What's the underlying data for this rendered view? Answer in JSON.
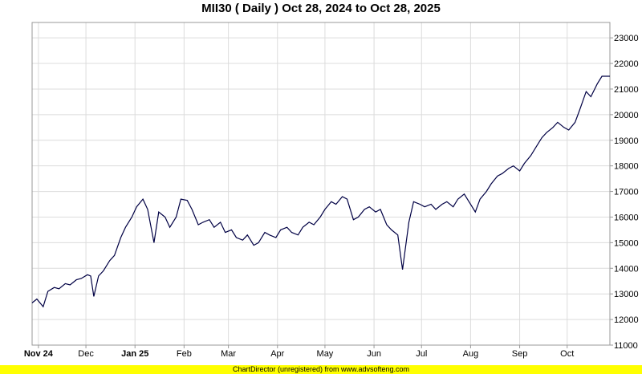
{
  "title": "MII30 ( Daily ) Oct 28, 2024 to Oct 28, 2025",
  "footer": "ChartDirector (unregistered) from www.advsofteng.com",
  "colors": {
    "line": "#000044",
    "grid": "#dcdcdc",
    "axis": "#999999",
    "footer_bg": "#ffff00"
  },
  "chart_data": {
    "type": "line",
    "title": "MII30 ( Daily ) Oct 28, 2024 to Oct 28, 2025",
    "xlabel": "",
    "ylabel": "",
    "ylim": [
      11000,
      23600
    ],
    "xlim": [
      "2024-10-28",
      "2025-10-28"
    ],
    "y_axis_position": "right",
    "grid": true,
    "x_ticks": [
      {
        "date": "2024-11-01",
        "label": "Nov 24",
        "bold": true
      },
      {
        "date": "2024-12-01",
        "label": "Dec",
        "bold": false
      },
      {
        "date": "2025-01-01",
        "label": "Jan 25",
        "bold": true
      },
      {
        "date": "2025-02-01",
        "label": "Feb",
        "bold": false
      },
      {
        "date": "2025-03-01",
        "label": "Mar",
        "bold": false
      },
      {
        "date": "2025-04-01",
        "label": "Apr",
        "bold": false
      },
      {
        "date": "2025-05-01",
        "label": "May",
        "bold": false
      },
      {
        "date": "2025-06-01",
        "label": "Jun",
        "bold": false
      },
      {
        "date": "2025-07-01",
        "label": "Jul",
        "bold": false
      },
      {
        "date": "2025-08-01",
        "label": "Aug",
        "bold": false
      },
      {
        "date": "2025-09-01",
        "label": "Sep",
        "bold": false
      },
      {
        "date": "2025-10-01",
        "label": "Oct",
        "bold": false
      }
    ],
    "y_ticks": [
      {
        "value": 11000,
        "label": "11000"
      },
      {
        "value": 12000,
        "label": "12000"
      },
      {
        "value": 13000,
        "label": "13000"
      },
      {
        "value": 14000,
        "label": "14000"
      },
      {
        "value": 15000,
        "label": "15000"
      },
      {
        "value": 16000,
        "label": "16000"
      },
      {
        "value": 17000,
        "label": "17000"
      },
      {
        "value": 18000,
        "label": "18000"
      },
      {
        "value": 19000,
        "label": "19000"
      },
      {
        "value": 20000,
        "label": "20000"
      },
      {
        "value": 21000,
        "label": "21000"
      },
      {
        "value": 22000,
        "label": "22000"
      },
      {
        "value": 23000,
        "label": "23000"
      }
    ],
    "series": [
      {
        "points": [
          [
            "2024-10-28",
            12650
          ],
          [
            "2024-10-31",
            12800
          ],
          [
            "2024-11-04",
            12500
          ],
          [
            "2024-11-07",
            13100
          ],
          [
            "2024-11-11",
            13250
          ],
          [
            "2024-11-14",
            13200
          ],
          [
            "2024-11-18",
            13400
          ],
          [
            "2024-11-21",
            13350
          ],
          [
            "2024-11-25",
            13550
          ],
          [
            "2024-11-28",
            13600
          ],
          [
            "2024-12-02",
            13750
          ],
          [
            "2024-12-04",
            13700
          ],
          [
            "2024-12-06",
            12900
          ],
          [
            "2024-12-09",
            13700
          ],
          [
            "2024-12-12",
            13900
          ],
          [
            "2024-12-16",
            14300
          ],
          [
            "2024-12-19",
            14500
          ],
          [
            "2024-12-23",
            15200
          ],
          [
            "2024-12-26",
            15600
          ],
          [
            "2024-12-30",
            16000
          ],
          [
            "2025-01-02",
            16400
          ],
          [
            "2025-01-06",
            16700
          ],
          [
            "2025-01-09",
            16300
          ],
          [
            "2025-01-13",
            15000
          ],
          [
            "2025-01-16",
            16200
          ],
          [
            "2025-01-20",
            16000
          ],
          [
            "2025-01-23",
            15600
          ],
          [
            "2025-01-27",
            16000
          ],
          [
            "2025-01-30",
            16700
          ],
          [
            "2025-02-03",
            16650
          ],
          [
            "2025-02-06",
            16300
          ],
          [
            "2025-02-10",
            15700
          ],
          [
            "2025-02-13",
            15800
          ],
          [
            "2025-02-17",
            15900
          ],
          [
            "2025-02-20",
            15600
          ],
          [
            "2025-02-24",
            15800
          ],
          [
            "2025-02-27",
            15400
          ],
          [
            "2025-03-03",
            15500
          ],
          [
            "2025-03-06",
            15200
          ],
          [
            "2025-03-10",
            15100
          ],
          [
            "2025-03-13",
            15300
          ],
          [
            "2025-03-17",
            14900
          ],
          [
            "2025-03-20",
            15000
          ],
          [
            "2025-03-24",
            15400
          ],
          [
            "2025-03-27",
            15300
          ],
          [
            "2025-03-31",
            15200
          ],
          [
            "2025-04-03",
            15500
          ],
          [
            "2025-04-07",
            15600
          ],
          [
            "2025-04-10",
            15400
          ],
          [
            "2025-04-14",
            15300
          ],
          [
            "2025-04-17",
            15600
          ],
          [
            "2025-04-21",
            15800
          ],
          [
            "2025-04-24",
            15700
          ],
          [
            "2025-04-28",
            16000
          ],
          [
            "2025-05-01",
            16300
          ],
          [
            "2025-05-05",
            16600
          ],
          [
            "2025-05-08",
            16500
          ],
          [
            "2025-05-12",
            16800
          ],
          [
            "2025-05-15",
            16700
          ],
          [
            "2025-05-19",
            15900
          ],
          [
            "2025-05-22",
            16000
          ],
          [
            "2025-05-26",
            16300
          ],
          [
            "2025-05-29",
            16400
          ],
          [
            "2025-06-02",
            16200
          ],
          [
            "2025-06-05",
            16300
          ],
          [
            "2025-06-09",
            15700
          ],
          [
            "2025-06-12",
            15500
          ],
          [
            "2025-06-16",
            15300
          ],
          [
            "2025-06-19",
            13950
          ],
          [
            "2025-06-23",
            15800
          ],
          [
            "2025-06-26",
            16600
          ],
          [
            "2025-06-30",
            16500
          ],
          [
            "2025-07-03",
            16400
          ],
          [
            "2025-07-07",
            16500
          ],
          [
            "2025-07-10",
            16300
          ],
          [
            "2025-07-14",
            16500
          ],
          [
            "2025-07-17",
            16600
          ],
          [
            "2025-07-21",
            16400
          ],
          [
            "2025-07-24",
            16700
          ],
          [
            "2025-07-28",
            16900
          ],
          [
            "2025-07-31",
            16600
          ],
          [
            "2025-08-04",
            16200
          ],
          [
            "2025-08-07",
            16700
          ],
          [
            "2025-08-11",
            17000
          ],
          [
            "2025-08-14",
            17300
          ],
          [
            "2025-08-18",
            17600
          ],
          [
            "2025-08-21",
            17700
          ],
          [
            "2025-08-25",
            17900
          ],
          [
            "2025-08-28",
            18000
          ],
          [
            "2025-09-01",
            17800
          ],
          [
            "2025-09-04",
            18100
          ],
          [
            "2025-09-08",
            18400
          ],
          [
            "2025-09-11",
            18700
          ],
          [
            "2025-09-15",
            19100
          ],
          [
            "2025-09-18",
            19300
          ],
          [
            "2025-09-22",
            19500
          ],
          [
            "2025-09-25",
            19700
          ],
          [
            "2025-09-29",
            19500
          ],
          [
            "2025-10-02",
            19400
          ],
          [
            "2025-10-06",
            19700
          ],
          [
            "2025-10-09",
            20200
          ],
          [
            "2025-10-13",
            20900
          ],
          [
            "2025-10-16",
            20700
          ],
          [
            "2025-10-20",
            21200
          ],
          [
            "2025-10-23",
            21500
          ],
          [
            "2025-10-28",
            21500
          ]
        ]
      }
    ]
  }
}
